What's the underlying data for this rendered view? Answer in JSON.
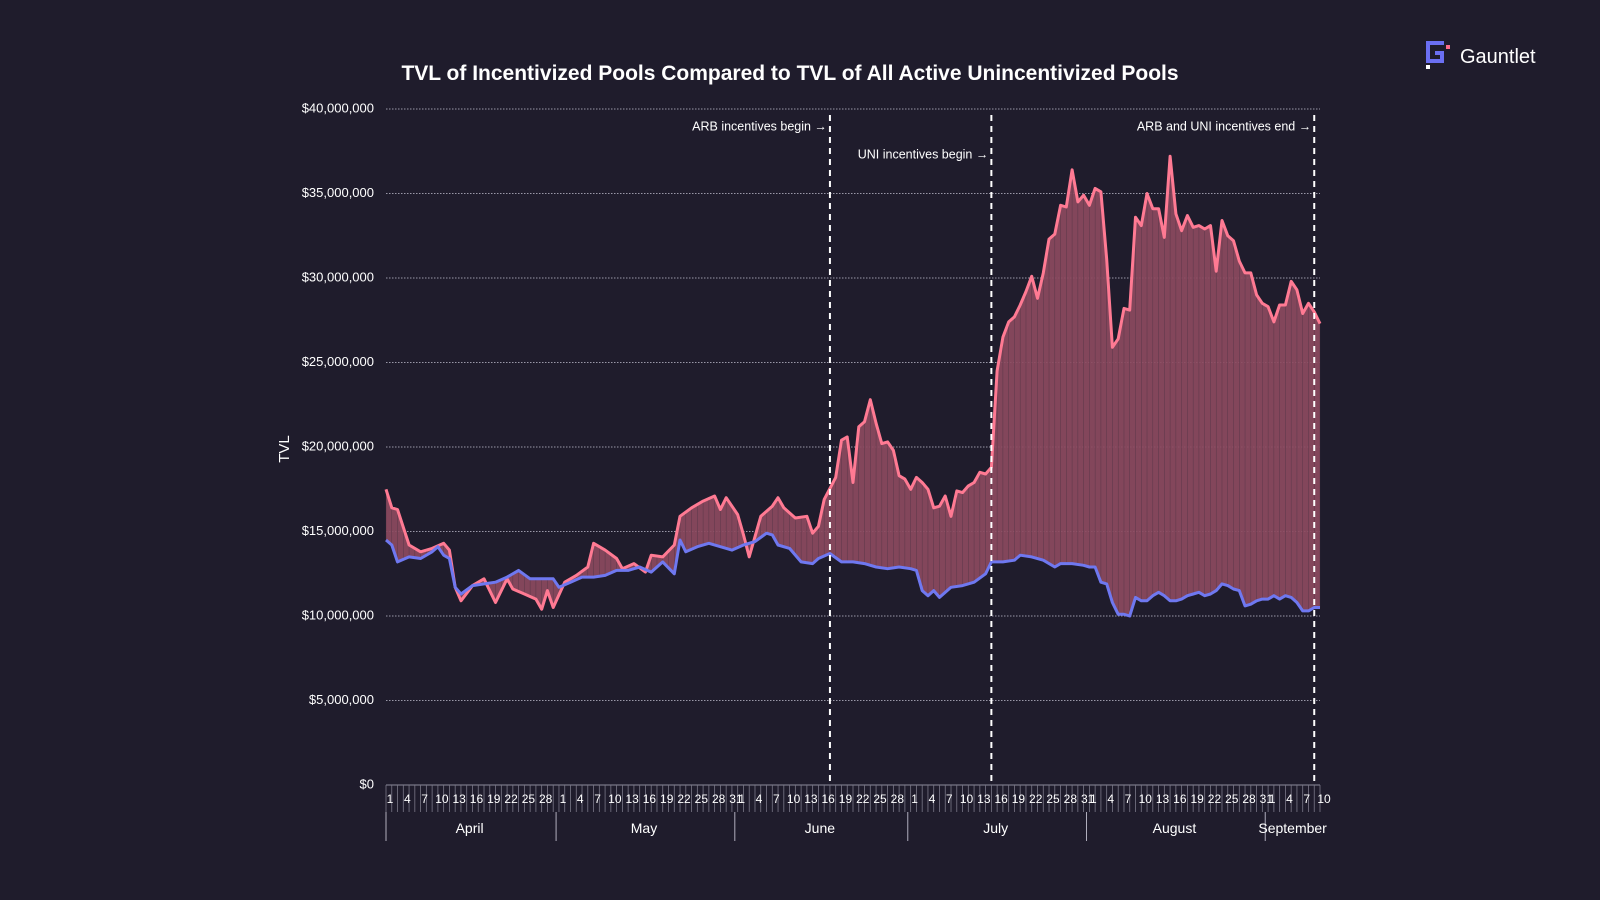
{
  "brand": {
    "name": "Gauntlet",
    "logo_icon": "gauntlet-g-logo-icon",
    "logo_color": "#6b6ff2",
    "logo_accent": "#ff6b8a"
  },
  "chart_data": {
    "type": "area",
    "title": "TVL of Incentivized Pools Compared to TVL of All Active Unincentivized Pools",
    "ylabel": "TVL",
    "xlabel": "",
    "ylim": [
      0,
      40000000
    ],
    "yticks": [
      0,
      5000000,
      10000000,
      15000000,
      20000000,
      25000000,
      30000000,
      35000000,
      40000000
    ],
    "ytick_labels": [
      "$0",
      "$5,000,000",
      "$10,000,000",
      "$15,000,000",
      "$20,000,000",
      "$25,000,000",
      "$30,000,000",
      "$35,000,000",
      "$40,000,000"
    ],
    "grid": true,
    "x_start": "2023-04-01",
    "x_end": "2023-09-10",
    "months": [
      {
        "label": "April",
        "start": "2023-04-01",
        "end": "2023-04-30"
      },
      {
        "label": "May",
        "start": "2023-05-01",
        "end": "2023-05-31"
      },
      {
        "label": "June",
        "start": "2023-06-01",
        "end": "2023-06-30"
      },
      {
        "label": "July",
        "start": "2023-07-01",
        "end": "2023-07-31"
      },
      {
        "label": "August",
        "start": "2023-08-01",
        "end": "2023-08-31"
      },
      {
        "label": "September",
        "start": "2023-09-01",
        "end": "2023-09-10"
      }
    ],
    "annotations": [
      {
        "text": "ARB incentives begin →",
        "date": "2023-06-17",
        "row": 0
      },
      {
        "text": "UNI incentives begin →",
        "date": "2023-07-15",
        "row": 1
      },
      {
        "text": "ARB and UNI incentives end →",
        "date": "2023-09-09",
        "row": 0
      }
    ],
    "series": [
      {
        "color": "#ff7a93",
        "points": [
          [
            "2023-04-01",
            17500000
          ],
          [
            "2023-04-02",
            16400000
          ],
          [
            "2023-04-03",
            16300000
          ],
          [
            "2023-04-05",
            14200000
          ],
          [
            "2023-04-07",
            13800000
          ],
          [
            "2023-04-09",
            14000000
          ],
          [
            "2023-04-11",
            14300000
          ],
          [
            "2023-04-12",
            13900000
          ],
          [
            "2023-04-13",
            11700000
          ],
          [
            "2023-04-14",
            10900000
          ],
          [
            "2023-04-16",
            11800000
          ],
          [
            "2023-04-18",
            12200000
          ],
          [
            "2023-04-20",
            10800000
          ],
          [
            "2023-04-22",
            12200000
          ],
          [
            "2023-04-23",
            11600000
          ],
          [
            "2023-04-25",
            11300000
          ],
          [
            "2023-04-27",
            11000000
          ],
          [
            "2023-04-28",
            10400000
          ],
          [
            "2023-04-29",
            11500000
          ],
          [
            "2023-04-30",
            10500000
          ],
          [
            "2023-05-02",
            12000000
          ],
          [
            "2023-05-04",
            12400000
          ],
          [
            "2023-05-06",
            12900000
          ],
          [
            "2023-05-07",
            14300000
          ],
          [
            "2023-05-09",
            13900000
          ],
          [
            "2023-05-11",
            13400000
          ],
          [
            "2023-05-12",
            12800000
          ],
          [
            "2023-05-14",
            13100000
          ],
          [
            "2023-05-16",
            12600000
          ],
          [
            "2023-05-17",
            13600000
          ],
          [
            "2023-05-19",
            13500000
          ],
          [
            "2023-05-21",
            14200000
          ],
          [
            "2023-05-22",
            15900000
          ],
          [
            "2023-05-24",
            16400000
          ],
          [
            "2023-05-26",
            16800000
          ],
          [
            "2023-05-28",
            17100000
          ],
          [
            "2023-05-29",
            16300000
          ],
          [
            "2023-05-30",
            17000000
          ],
          [
            "2023-06-01",
            16000000
          ],
          [
            "2023-06-02",
            14800000
          ],
          [
            "2023-06-03",
            13500000
          ],
          [
            "2023-06-05",
            15900000
          ],
          [
            "2023-06-07",
            16500000
          ],
          [
            "2023-06-08",
            17000000
          ],
          [
            "2023-06-09",
            16400000
          ],
          [
            "2023-06-11",
            15800000
          ],
          [
            "2023-06-13",
            15900000
          ],
          [
            "2023-06-14",
            14900000
          ],
          [
            "2023-06-15",
            15300000
          ],
          [
            "2023-06-16",
            16900000
          ],
          [
            "2023-06-18",
            18200000
          ],
          [
            "2023-06-19",
            20400000
          ],
          [
            "2023-06-20",
            20600000
          ],
          [
            "2023-06-21",
            17900000
          ],
          [
            "2023-06-22",
            21200000
          ],
          [
            "2023-06-23",
            21500000
          ],
          [
            "2023-06-24",
            22800000
          ],
          [
            "2023-06-25",
            21400000
          ],
          [
            "2023-06-26",
            20200000
          ],
          [
            "2023-06-27",
            20300000
          ],
          [
            "2023-06-28",
            19800000
          ],
          [
            "2023-06-29",
            18300000
          ],
          [
            "2023-06-30",
            18100000
          ],
          [
            "2023-07-01",
            17500000
          ],
          [
            "2023-07-02",
            18200000
          ],
          [
            "2023-07-03",
            17900000
          ],
          [
            "2023-07-04",
            17500000
          ],
          [
            "2023-07-05",
            16400000
          ],
          [
            "2023-07-06",
            16500000
          ],
          [
            "2023-07-07",
            17100000
          ],
          [
            "2023-07-08",
            15900000
          ],
          [
            "2023-07-09",
            17400000
          ],
          [
            "2023-07-10",
            17300000
          ],
          [
            "2023-07-11",
            17700000
          ],
          [
            "2023-07-12",
            17900000
          ],
          [
            "2023-07-13",
            18500000
          ],
          [
            "2023-07-14",
            18400000
          ],
          [
            "2023-07-15",
            18800000
          ],
          [
            "2023-07-16",
            24500000
          ],
          [
            "2023-07-17",
            26500000
          ],
          [
            "2023-07-18",
            27400000
          ],
          [
            "2023-07-19",
            27700000
          ],
          [
            "2023-07-20",
            28400000
          ],
          [
            "2023-07-21",
            29200000
          ],
          [
            "2023-07-22",
            30100000
          ],
          [
            "2023-07-23",
            28800000
          ],
          [
            "2023-07-24",
            30300000
          ],
          [
            "2023-07-25",
            32300000
          ],
          [
            "2023-07-26",
            32600000
          ],
          [
            "2023-07-27",
            34300000
          ],
          [
            "2023-07-28",
            34200000
          ],
          [
            "2023-07-29",
            36400000
          ],
          [
            "2023-07-30",
            34500000
          ],
          [
            "2023-07-31",
            34900000
          ],
          [
            "2023-08-01",
            34300000
          ],
          [
            "2023-08-02",
            35300000
          ],
          [
            "2023-08-03",
            35100000
          ],
          [
            "2023-08-04",
            31100000
          ],
          [
            "2023-08-05",
            25900000
          ],
          [
            "2023-08-06",
            26400000
          ],
          [
            "2023-08-07",
            28200000
          ],
          [
            "2023-08-08",
            28100000
          ],
          [
            "2023-08-09",
            33600000
          ],
          [
            "2023-08-10",
            33100000
          ],
          [
            "2023-08-11",
            35000000
          ],
          [
            "2023-08-12",
            34100000
          ],
          [
            "2023-08-13",
            34100000
          ],
          [
            "2023-08-14",
            32400000
          ],
          [
            "2023-08-15",
            37200000
          ],
          [
            "2023-08-16",
            33800000
          ],
          [
            "2023-08-17",
            32800000
          ],
          [
            "2023-08-18",
            33700000
          ],
          [
            "2023-08-19",
            33000000
          ],
          [
            "2023-08-20",
            33100000
          ],
          [
            "2023-08-21",
            32900000
          ],
          [
            "2023-08-22",
            33100000
          ],
          [
            "2023-08-23",
            30400000
          ],
          [
            "2023-08-24",
            33400000
          ],
          [
            "2023-08-25",
            32500000
          ],
          [
            "2023-08-26",
            32200000
          ],
          [
            "2023-08-27",
            31000000
          ],
          [
            "2023-08-28",
            30300000
          ],
          [
            "2023-08-29",
            30300000
          ],
          [
            "2023-08-30",
            29000000
          ],
          [
            "2023-08-31",
            28500000
          ],
          [
            "2023-09-01",
            28300000
          ],
          [
            "2023-09-02",
            27400000
          ],
          [
            "2023-09-03",
            28400000
          ],
          [
            "2023-09-04",
            28400000
          ],
          [
            "2023-09-05",
            29800000
          ],
          [
            "2023-09-06",
            29300000
          ],
          [
            "2023-09-07",
            27900000
          ],
          [
            "2023-09-08",
            28500000
          ],
          [
            "2023-09-09",
            28000000
          ],
          [
            "2023-09-10",
            27300000
          ]
        ]
      },
      {
        "color": "#6f78f0",
        "points": [
          [
            "2023-04-01",
            14500000
          ],
          [
            "2023-04-02",
            14200000
          ],
          [
            "2023-04-03",
            13200000
          ],
          [
            "2023-04-05",
            13500000
          ],
          [
            "2023-04-07",
            13400000
          ],
          [
            "2023-04-09",
            13800000
          ],
          [
            "2023-04-10",
            14100000
          ],
          [
            "2023-04-11",
            13600000
          ],
          [
            "2023-04-12",
            13400000
          ],
          [
            "2023-04-13",
            11700000
          ],
          [
            "2023-04-14",
            11300000
          ],
          [
            "2023-04-16",
            11800000
          ],
          [
            "2023-04-18",
            11900000
          ],
          [
            "2023-04-20",
            12000000
          ],
          [
            "2023-04-22",
            12300000
          ],
          [
            "2023-04-24",
            12700000
          ],
          [
            "2023-04-26",
            12200000
          ],
          [
            "2023-04-28",
            12200000
          ],
          [
            "2023-04-30",
            12200000
          ],
          [
            "2023-05-01",
            11700000
          ],
          [
            "2023-05-03",
            12000000
          ],
          [
            "2023-05-05",
            12300000
          ],
          [
            "2023-05-07",
            12300000
          ],
          [
            "2023-05-09",
            12400000
          ],
          [
            "2023-05-11",
            12700000
          ],
          [
            "2023-05-13",
            12700000
          ],
          [
            "2023-05-15",
            12900000
          ],
          [
            "2023-05-17",
            12600000
          ],
          [
            "2023-05-19",
            13200000
          ],
          [
            "2023-05-21",
            12500000
          ],
          [
            "2023-05-22",
            14500000
          ],
          [
            "2023-05-23",
            13800000
          ],
          [
            "2023-05-25",
            14100000
          ],
          [
            "2023-05-27",
            14300000
          ],
          [
            "2023-05-29",
            14100000
          ],
          [
            "2023-05-31",
            13900000
          ],
          [
            "2023-06-02",
            14200000
          ],
          [
            "2023-06-04",
            14400000
          ],
          [
            "2023-06-06",
            14900000
          ],
          [
            "2023-06-07",
            14800000
          ],
          [
            "2023-06-08",
            14200000
          ],
          [
            "2023-06-10",
            14000000
          ],
          [
            "2023-06-12",
            13200000
          ],
          [
            "2023-06-14",
            13100000
          ],
          [
            "2023-06-15",
            13400000
          ],
          [
            "2023-06-17",
            13700000
          ],
          [
            "2023-06-19",
            13200000
          ],
          [
            "2023-06-21",
            13200000
          ],
          [
            "2023-06-23",
            13100000
          ],
          [
            "2023-06-25",
            12900000
          ],
          [
            "2023-06-27",
            12800000
          ],
          [
            "2023-06-29",
            12900000
          ],
          [
            "2023-07-01",
            12800000
          ],
          [
            "2023-07-02",
            12700000
          ],
          [
            "2023-07-03",
            11500000
          ],
          [
            "2023-07-04",
            11200000
          ],
          [
            "2023-07-05",
            11500000
          ],
          [
            "2023-07-06",
            11100000
          ],
          [
            "2023-07-08",
            11700000
          ],
          [
            "2023-07-10",
            11800000
          ],
          [
            "2023-07-12",
            12000000
          ],
          [
            "2023-07-14",
            12500000
          ],
          [
            "2023-07-15",
            13200000
          ],
          [
            "2023-07-17",
            13200000
          ],
          [
            "2023-07-19",
            13300000
          ],
          [
            "2023-07-20",
            13600000
          ],
          [
            "2023-07-22",
            13500000
          ],
          [
            "2023-07-24",
            13300000
          ],
          [
            "2023-07-26",
            12900000
          ],
          [
            "2023-07-27",
            13100000
          ],
          [
            "2023-07-29",
            13100000
          ],
          [
            "2023-07-31",
            13000000
          ],
          [
            "2023-08-01",
            12900000
          ],
          [
            "2023-08-02",
            12900000
          ],
          [
            "2023-08-03",
            12000000
          ],
          [
            "2023-08-04",
            11900000
          ],
          [
            "2023-08-05",
            10800000
          ],
          [
            "2023-08-06",
            10100000
          ],
          [
            "2023-08-07",
            10100000
          ],
          [
            "2023-08-08",
            10000000
          ],
          [
            "2023-08-09",
            11100000
          ],
          [
            "2023-08-10",
            10900000
          ],
          [
            "2023-08-11",
            10900000
          ],
          [
            "2023-08-12",
            11200000
          ],
          [
            "2023-08-13",
            11400000
          ],
          [
            "2023-08-14",
            11200000
          ],
          [
            "2023-08-15",
            10900000
          ],
          [
            "2023-08-16",
            10900000
          ],
          [
            "2023-08-17",
            11000000
          ],
          [
            "2023-08-18",
            11200000
          ],
          [
            "2023-08-19",
            11300000
          ],
          [
            "2023-08-20",
            11400000
          ],
          [
            "2023-08-21",
            11200000
          ],
          [
            "2023-08-22",
            11300000
          ],
          [
            "2023-08-23",
            11500000
          ],
          [
            "2023-08-24",
            11900000
          ],
          [
            "2023-08-25",
            11800000
          ],
          [
            "2023-08-26",
            11600000
          ],
          [
            "2023-08-27",
            11500000
          ],
          [
            "2023-08-28",
            10600000
          ],
          [
            "2023-08-29",
            10700000
          ],
          [
            "2023-08-30",
            10900000
          ],
          [
            "2023-08-31",
            11000000
          ],
          [
            "2023-09-01",
            11000000
          ],
          [
            "2023-09-02",
            11200000
          ],
          [
            "2023-09-03",
            11000000
          ],
          [
            "2023-09-04",
            11200000
          ],
          [
            "2023-09-05",
            11100000
          ],
          [
            "2023-09-06",
            10800000
          ],
          [
            "2023-09-07",
            10300000
          ],
          [
            "2023-09-08",
            10300000
          ],
          [
            "2023-09-09",
            10500000
          ],
          [
            "2023-09-10",
            10500000
          ]
        ]
      }
    ],
    "fill_between_color": "#8c4a5f"
  }
}
